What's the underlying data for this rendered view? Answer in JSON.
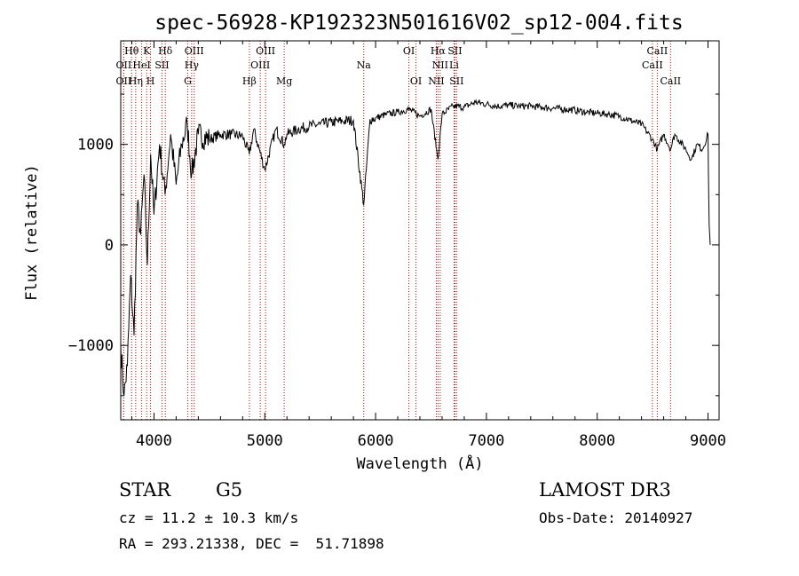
{
  "chart_data": {
    "type": "line",
    "title": "spec-56928-KP192323N501616V02_sp12-004.fits",
    "xlabel": "Wavelength (Å)",
    "ylabel": "Flux (relative)",
    "xlim": [
      3700,
      9100
    ],
    "ylim": [
      -1740,
      2030
    ],
    "x_ticks": [
      4000,
      5000,
      6000,
      7000,
      8000,
      9000
    ],
    "x_tick_labels": [
      "4000",
      "5000",
      "6000",
      "7000",
      "8000",
      "9000"
    ],
    "y_ticks": [
      -1000,
      0,
      1000
    ],
    "y_tick_labels": [
      "−1000",
      "0",
      "1000"
    ],
    "series": [
      {
        "name": "flux",
        "x": [
          3700,
          3730,
          3760,
          3790,
          3820,
          3850,
          3880,
          3910,
          3940,
          3970,
          4000,
          4050,
          4100,
          4150,
          4200,
          4250,
          4300,
          4340,
          4400,
          4500,
          4600,
          4700,
          4800,
          4861,
          4900,
          5000,
          5100,
          5175,
          5200,
          5300,
          5400,
          5500,
          5600,
          5700,
          5800,
          5893,
          5950,
          6000,
          6100,
          6200,
          6300,
          6400,
          6500,
          6563,
          6600,
          6700,
          6800,
          6900,
          7000,
          7100,
          7200,
          7300,
          7400,
          7500,
          7600,
          7700,
          7800,
          7900,
          8000,
          8100,
          8200,
          8300,
          8400,
          8498,
          8542,
          8600,
          8662,
          8700,
          8800,
          8850,
          8900,
          8950,
          9000,
          9010,
          9020
        ],
        "values": [
          -1000,
          -1500,
          -1200,
          -300,
          -900,
          400,
          100,
          700,
          -200,
          900,
          300,
          1000,
          500,
          1100,
          600,
          1000,
          1200,
          700,
          1100,
          1050,
          1100,
          1100,
          1080,
          900,
          1150,
          750,
          1150,
          1000,
          1100,
          1150,
          1180,
          1200,
          1220,
          1230,
          1240,
          400,
          1250,
          1260,
          1300,
          1320,
          1350,
          1280,
          1350,
          850,
          1300,
          1380,
          1370,
          1420,
          1400,
          1380,
          1390,
          1380,
          1380,
          1370,
          1360,
          1350,
          1340,
          1320,
          1310,
          1300,
          1280,
          1240,
          1200,
          1050,
          950,
          1100,
          950,
          1100,
          950,
          850,
          1000,
          950,
          1100,
          200,
          0
        ]
      }
    ],
    "spectral_lines": [
      {
        "name": "OII",
        "wavelength": 3727,
        "row": 2
      },
      {
        "name": "Hθ",
        "wavelength": 3798,
        "row": 0
      },
      {
        "name": "OII",
        "wavelength": 3727,
        "row": 1
      },
      {
        "name": "HeI",
        "wavelength": 3889,
        "row": 1
      },
      {
        "name": "Hη",
        "wavelength": 3835,
        "row": 2
      },
      {
        "name": "K",
        "wavelength": 3934,
        "row": 0
      },
      {
        "name": "H",
        "wavelength": 3969,
        "row": 2
      },
      {
        "name": "SII",
        "wavelength": 4072,
        "row": 1
      },
      {
        "name": "Hδ",
        "wavelength": 4102,
        "row": 0
      },
      {
        "name": "OIII",
        "wavelength": 4363,
        "row": 0
      },
      {
        "name": "Hγ",
        "wavelength": 4340,
        "row": 1
      },
      {
        "name": "G",
        "wavelength": 4305,
        "row": 2
      },
      {
        "name": "Hβ",
        "wavelength": 4861,
        "row": 2
      },
      {
        "name": "OIII",
        "wavelength": 5007,
        "row": 0
      },
      {
        "name": "OIII",
        "wavelength": 4959,
        "row": 1
      },
      {
        "name": "Mg",
        "wavelength": 5175,
        "row": 2
      },
      {
        "name": "Na",
        "wavelength": 5893,
        "row": 1
      },
      {
        "name": "OI",
        "wavelength": 6300,
        "row": 0
      },
      {
        "name": "OI",
        "wavelength": 6364,
        "row": 2
      },
      {
        "name": "Hα",
        "wavelength": 6563,
        "row": 0
      },
      {
        "name": "SII",
        "wavelength": 6716,
        "row": 0
      },
      {
        "name": "NII",
        "wavelength": 6583,
        "row": 1
      },
      {
        "name": "Li",
        "wavelength": 6708,
        "row": 1
      },
      {
        "name": "NII",
        "wavelength": 6548,
        "row": 2
      },
      {
        "name": "SII",
        "wavelength": 6731,
        "row": 2
      },
      {
        "name": "CaII",
        "wavelength": 8542,
        "row": 0
      },
      {
        "name": "CaII",
        "wavelength": 8498,
        "row": 1
      },
      {
        "name": "CaII",
        "wavelength": 8662,
        "row": 2
      }
    ],
    "line_color": "#000000",
    "marker_color": "#cc0000"
  },
  "info": {
    "object_type": "STAR",
    "subclass": "G5",
    "survey": "LAMOST DR3",
    "cz": "cz = 11.2 ± 10.3 km/s",
    "obs_date": "Obs-Date: 20140927",
    "coords": "RA = 293.21338, DEC =  51.71898"
  }
}
